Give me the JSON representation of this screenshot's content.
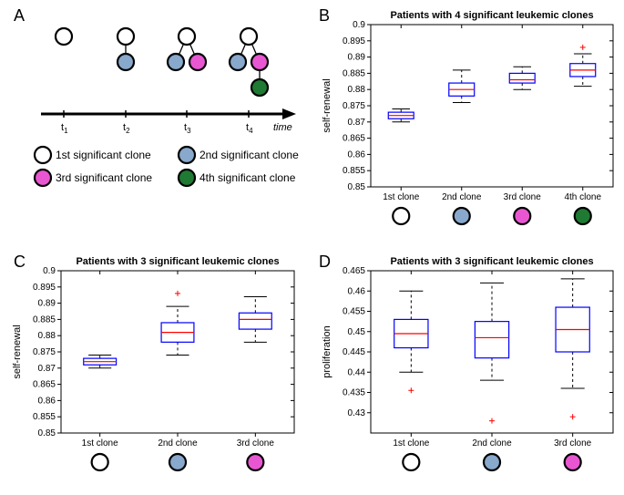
{
  "panelA": {
    "label": "A",
    "colors": {
      "clone1": "#ffffff",
      "clone2": "#88a8cc",
      "clone3": "#e857d1",
      "clone4": "#1f7a33",
      "stroke": "#000000"
    },
    "timePoints": [
      "t",
      "t",
      "t",
      "t"
    ],
    "timeSubs": [
      "1",
      "2",
      "3",
      "4"
    ],
    "timeLabel": "time",
    "legend": [
      {
        "label": "1st significant clone",
        "color": "#ffffff"
      },
      {
        "label": "2nd significant clone",
        "color": "#88a8cc"
      },
      {
        "label": "3rd significant clone",
        "color": "#e857d1"
      },
      {
        "label": "4th significant clone",
        "color": "#1f7a33"
      }
    ]
  },
  "panelB": {
    "label": "B",
    "title": "Patients with 4 significant leukemic clones",
    "ylabel": "self-renewal",
    "ylim": [
      0.85,
      0.9
    ],
    "yticks": [
      0.85,
      0.855,
      0.86,
      0.865,
      0.87,
      0.875,
      0.88,
      0.885,
      0.89,
      0.895,
      0.9
    ],
    "boxes": [
      {
        "label": "1st clone",
        "q1": 0.871,
        "median": 0.872,
        "q3": 0.873,
        "lo": 0.87,
        "hi": 0.874,
        "outliers": [],
        "color": "#ffffff"
      },
      {
        "label": "2nd clone",
        "q1": 0.878,
        "median": 0.88,
        "q3": 0.882,
        "lo": 0.876,
        "hi": 0.886,
        "outliers": [],
        "color": "#88a8cc"
      },
      {
        "label": "3rd clone",
        "q1": 0.882,
        "median": 0.883,
        "q3": 0.885,
        "lo": 0.88,
        "hi": 0.887,
        "outliers": [],
        "color": "#e857d1"
      },
      {
        "label": "4th clone",
        "q1": 0.884,
        "median": 0.886,
        "q3": 0.888,
        "lo": 0.881,
        "hi": 0.891,
        "outliers": [
          0.893
        ],
        "color": "#1f7a33"
      }
    ]
  },
  "panelC": {
    "label": "C",
    "title": "Patients with 3 significant leukemic clones",
    "ylabel": "self-renewal",
    "ylim": [
      0.85,
      0.9
    ],
    "yticks": [
      0.85,
      0.855,
      0.86,
      0.865,
      0.87,
      0.875,
      0.88,
      0.885,
      0.89,
      0.895,
      0.9
    ],
    "boxes": [
      {
        "label": "1st clone",
        "q1": 0.871,
        "median": 0.872,
        "q3": 0.873,
        "lo": 0.87,
        "hi": 0.874,
        "outliers": [],
        "color": "#ffffff"
      },
      {
        "label": "2nd clone",
        "q1": 0.878,
        "median": 0.881,
        "q3": 0.884,
        "lo": 0.874,
        "hi": 0.889,
        "outliers": [
          0.893
        ],
        "color": "#88a8cc"
      },
      {
        "label": "3rd clone",
        "q1": 0.882,
        "median": 0.885,
        "q3": 0.887,
        "lo": 0.878,
        "hi": 0.892,
        "outliers": [],
        "color": "#e857d1"
      }
    ]
  },
  "panelD": {
    "label": "D",
    "title": "Patients with 3 significant leukemic clones",
    "ylabel": "proliferation",
    "ylim": [
      0.425,
      0.465
    ],
    "yticks": [
      0.43,
      0.435,
      0.44,
      0.445,
      0.45,
      0.455,
      0.46,
      0.465
    ],
    "boxes": [
      {
        "label": "1st clone",
        "q1": 0.446,
        "median": 0.4495,
        "q3": 0.453,
        "lo": 0.44,
        "hi": 0.46,
        "outliers": [
          0.4355
        ],
        "color": "#ffffff"
      },
      {
        "label": "2nd clone",
        "q1": 0.4435,
        "median": 0.4485,
        "q3": 0.4525,
        "lo": 0.438,
        "hi": 0.462,
        "outliers": [
          0.428
        ],
        "color": "#88a8cc"
      },
      {
        "label": "3rd clone",
        "q1": 0.445,
        "median": 0.4505,
        "q3": 0.456,
        "lo": 0.436,
        "hi": 0.463,
        "outliers": [
          0.429
        ],
        "color": "#e857d1"
      }
    ]
  }
}
